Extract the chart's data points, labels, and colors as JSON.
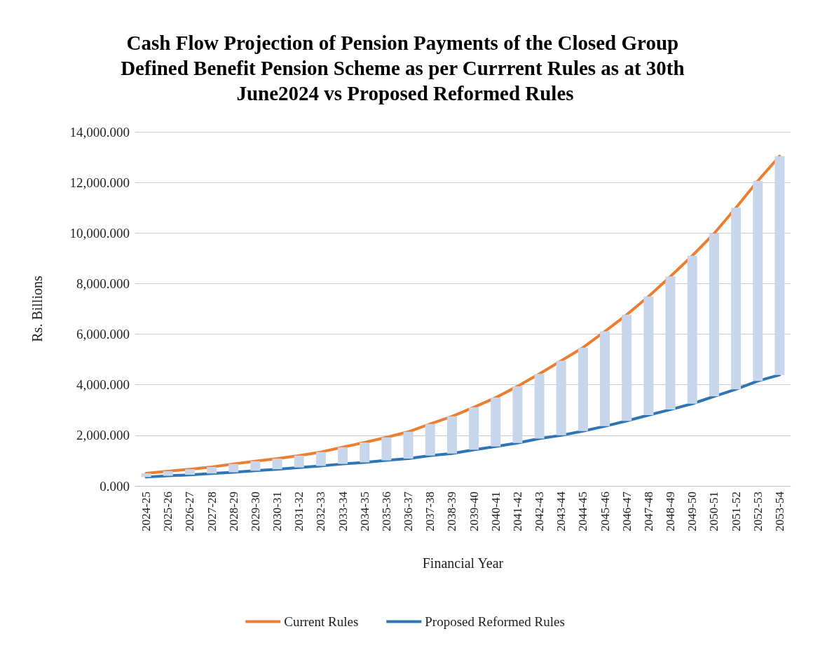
{
  "chart_data": {
    "type": "line",
    "title": "Cash Flow Projection of Pension Payments of the Closed Group Defined Benefit Pension Scheme as per Currrent Rules as at 30th June2024 vs Proposed Reformed Rules",
    "xlabel": "Financial Year",
    "ylabel": "Rs. Billions",
    "categories": [
      "2024-25",
      "2025-26",
      "2026-27",
      "2027-28",
      "2028-29",
      "2029-30",
      "2030-31",
      "2031-32",
      "2032-33",
      "2033-34",
      "2034-35",
      "2035-36",
      "2036-37",
      "2037-38",
      "2038-39",
      "2039-40",
      "2040-41",
      "2041-42",
      "2042-43",
      "2043-44",
      "2044-45",
      "2045-46",
      "2046-47",
      "2047-48",
      "2048-49",
      "2049-50",
      "2050-51",
      "2051-52",
      "2052-53",
      "2053-54"
    ],
    "series": [
      {
        "type": "bar",
        "color": "#c8d6ec",
        "base": [
          350,
          400,
          440,
          490,
          540,
          600,
          660,
          730,
          790,
          870,
          930,
          1010,
          1080,
          1200,
          1280,
          1430,
          1560,
          1700,
          1870,
          2000,
          2170,
          2360,
          2570,
          2800,
          3020,
          3250,
          3540,
          3820,
          4150,
          4390
        ],
        "values": [
          150,
          180,
          220,
          260,
          330,
          380,
          420,
          470,
          550,
          660,
          790,
          910,
          1060,
          1250,
          1470,
          1680,
          1930,
          2240,
          2560,
          2950,
          3300,
          3750,
          4200,
          4690,
          5260,
          5850,
          6440,
          7180,
          7910,
          8650
        ]
      },
      {
        "name": "Current Rules",
        "color": "#ed7d31",
        "values": [
          500,
          580,
          660,
          750,
          870,
          980,
          1080,
          1200,
          1340,
          1530,
          1720,
          1920,
          2140,
          2450,
          2750,
          3110,
          3490,
          3940,
          4430,
          4950,
          5470,
          6110,
          6770,
          7490,
          8280,
          9100,
          9980,
          11000,
          12060,
          13040
        ]
      },
      {
        "name": "Proposed Reformed Rules",
        "color": "#2e75b6",
        "values": [
          350,
          400,
          440,
          490,
          540,
          600,
          660,
          730,
          790,
          870,
          930,
          1010,
          1080,
          1200,
          1280,
          1430,
          1560,
          1700,
          1870,
          2000,
          2170,
          2360,
          2570,
          2800,
          3020,
          3250,
          3540,
          3820,
          4150,
          4390
        ]
      }
    ],
    "ylim": [
      0,
      14000
    ],
    "yticks": [
      {
        "value": 0,
        "label": "0.000"
      },
      {
        "value": 2000,
        "label": "2,000.000"
      },
      {
        "value": 4000,
        "label": "4,000.000"
      },
      {
        "value": 6000,
        "label": "6,000.000"
      },
      {
        "value": 8000,
        "label": "8,000.000"
      },
      {
        "value": 10000,
        "label": "10,000.000"
      },
      {
        "value": 12000,
        "label": "12,000.000"
      },
      {
        "value": 14000,
        "label": "14,000.000"
      }
    ],
    "grid": "y",
    "legend": "bottom",
    "marker": "none",
    "line_style": "solid"
  }
}
